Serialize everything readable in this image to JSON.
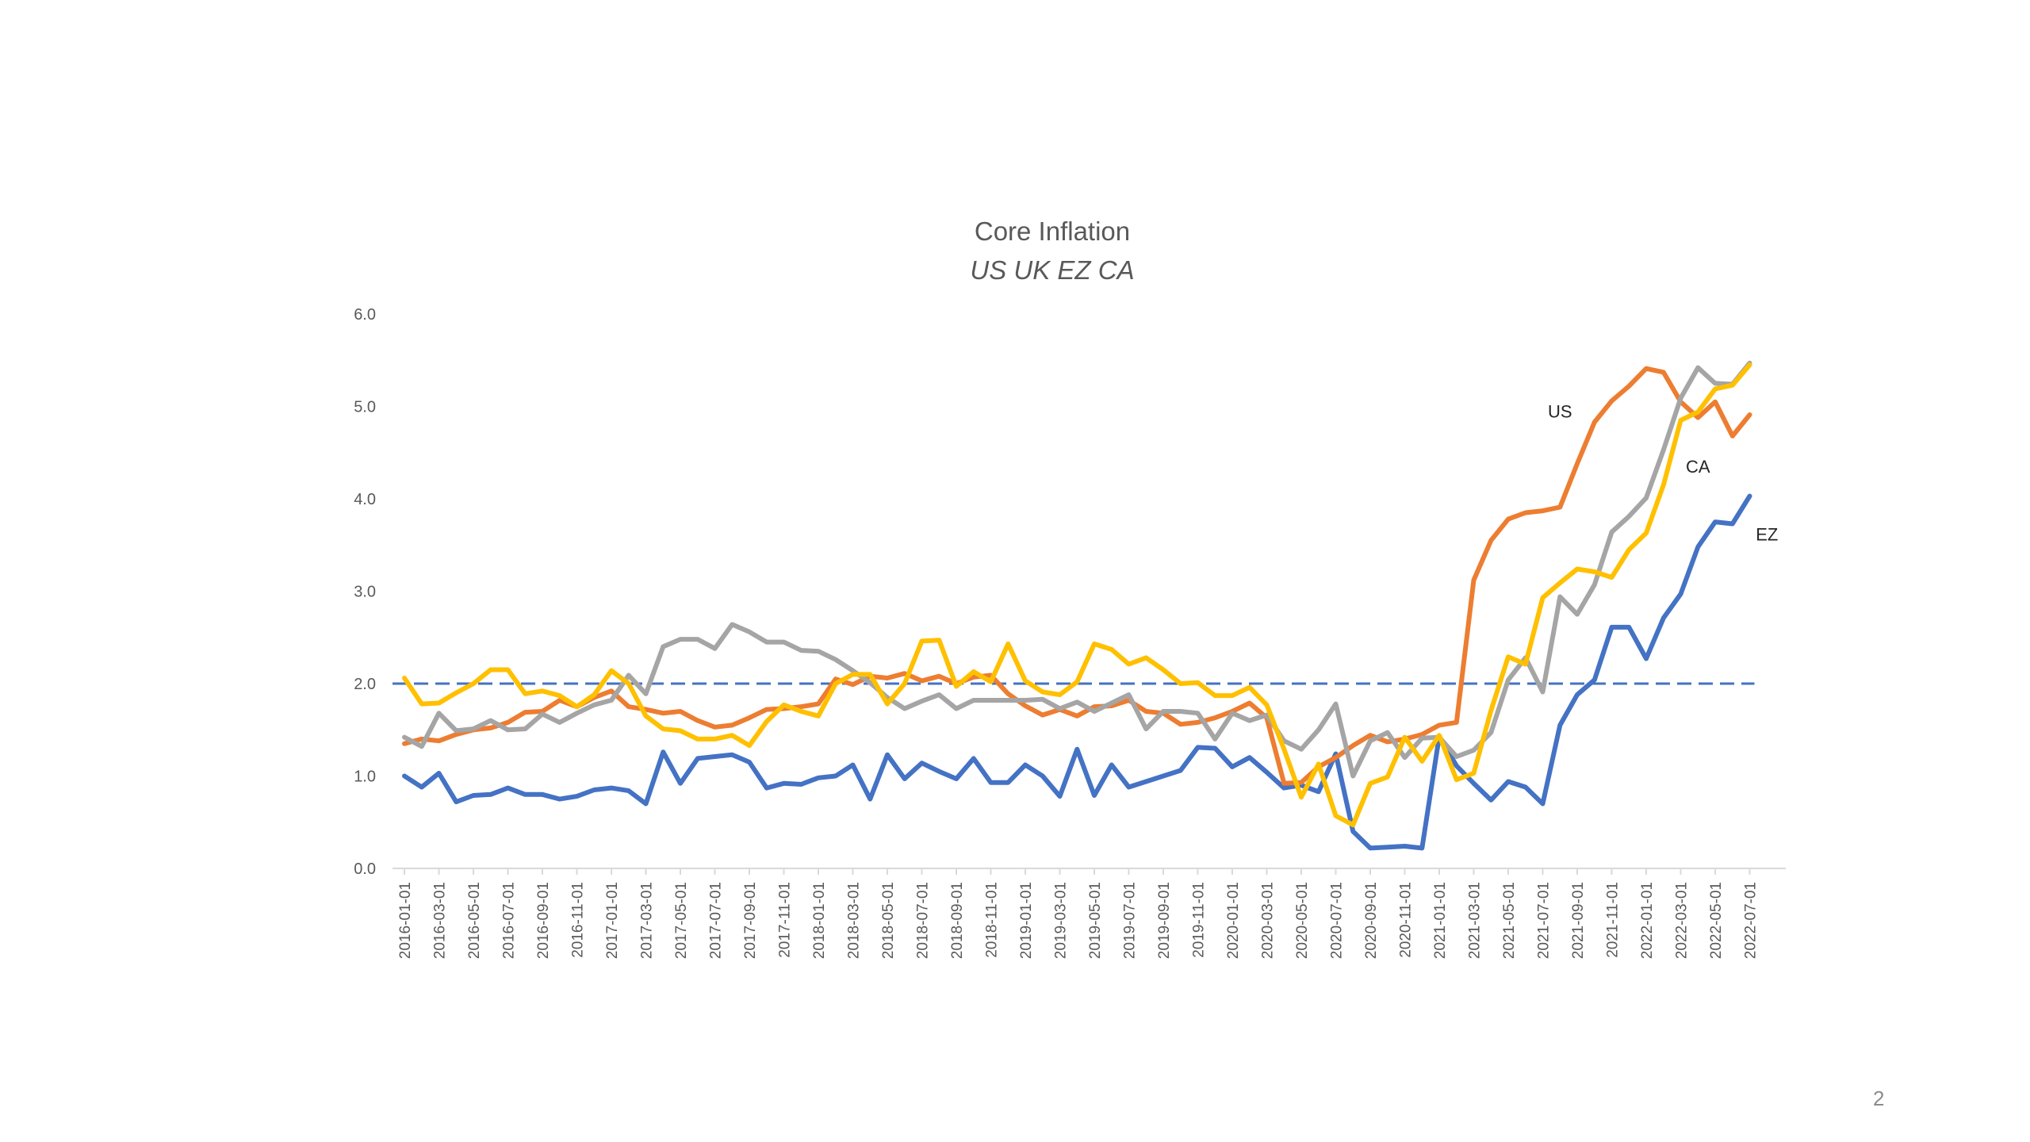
{
  "page_number": "2",
  "chart_data": {
    "type": "line",
    "title": "Core Inflation",
    "subtitle": "US UK EZ CA",
    "xlabel": "",
    "ylabel": "",
    "ylim": [
      0,
      6
    ],
    "y_ticks": [
      "0.0",
      "1.0",
      "2.0",
      "3.0",
      "4.0",
      "5.0",
      "6.0"
    ],
    "x_start": "2016-01",
    "x_tick_labels": [
      "2016-01-01",
      "2016-03-01",
      "2016-05-01",
      "2016-07-01",
      "2016-09-01",
      "2016-11-01",
      "2017-01-01",
      "2017-03-01",
      "2017-05-01",
      "2017-07-01",
      "2017-09-01",
      "2017-11-01",
      "2018-01-01",
      "2018-03-01",
      "2018-05-01",
      "2018-07-01",
      "2018-09-01",
      "2018-11-01",
      "2019-01-01",
      "2019-03-01",
      "2019-05-01",
      "2019-07-01",
      "2019-09-01",
      "2019-11-01",
      "2020-01-01",
      "2020-03-01",
      "2020-05-01",
      "2020-07-01",
      "2020-09-01",
      "2020-11-01",
      "2021-01-01",
      "2021-03-01",
      "2021-05-01",
      "2021-07-01",
      "2021-09-01",
      "2021-11-01",
      "2022-01-01",
      "2022-03-01",
      "2022-05-01",
      "2022-07-01"
    ],
    "grid": false,
    "reference_line": {
      "value": 2.0,
      "style": "dashed",
      "color": "#4472C4"
    },
    "annotations": [
      {
        "text": "US",
        "x": "2021-08-01",
        "y": 4.95
      },
      {
        "text": "CA",
        "x": "2022-04-01",
        "y": 4.35
      },
      {
        "text": "EZ",
        "x": "2022-08-01",
        "y": 3.62
      }
    ],
    "series": [
      {
        "key": "ez",
        "color": "#4472C4",
        "values": [
          1.0,
          0.88,
          1.03,
          0.72,
          0.79,
          0.8,
          0.87,
          0.8,
          0.8,
          0.75,
          0.78,
          0.85,
          0.87,
          0.84,
          0.7,
          1.26,
          0.92,
          1.19,
          1.21,
          1.23,
          1.15,
          0.87,
          0.92,
          0.91,
          0.98,
          1.0,
          1.12,
          0.75,
          1.23,
          0.97,
          1.14,
          1.05,
          0.97,
          1.19,
          0.93,
          0.93,
          1.12,
          1.0,
          0.78,
          1.29,
          0.79,
          1.12,
          0.88,
          0.94,
          1.0,
          1.06,
          1.31,
          1.3,
          1.1,
          1.2,
          1.04,
          0.87,
          0.9,
          0.83,
          1.24,
          0.4,
          0.22,
          0.23,
          0.24,
          0.22,
          1.43,
          1.11,
          0.92,
          0.74,
          0.94,
          0.88,
          0.7,
          1.55,
          1.88,
          2.04,
          2.61,
          2.61,
          2.27,
          2.71,
          2.97,
          3.48,
          3.75,
          3.73,
          4.03
        ]
      },
      {
        "key": "us",
        "color": "#ED7D31",
        "values": [
          1.35,
          1.4,
          1.38,
          1.45,
          1.5,
          1.52,
          1.58,
          1.69,
          1.7,
          1.82,
          1.75,
          1.85,
          1.92,
          1.75,
          1.72,
          1.68,
          1.7,
          1.6,
          1.53,
          1.55,
          1.63,
          1.72,
          1.73,
          1.75,
          1.78,
          2.05,
          1.99,
          2.08,
          2.06,
          2.11,
          2.03,
          2.08,
          2.0,
          2.07,
          2.09,
          1.89,
          1.76,
          1.66,
          1.72,
          1.65,
          1.75,
          1.76,
          1.82,
          1.7,
          1.68,
          1.56,
          1.58,
          1.63,
          1.7,
          1.79,
          1.63,
          0.92,
          0.93,
          1.1,
          1.2,
          1.33,
          1.44,
          1.37,
          1.4,
          1.45,
          1.55,
          1.58,
          3.12,
          3.55,
          3.78,
          3.85,
          3.87,
          3.91,
          4.38,
          4.83,
          5.06,
          5.22,
          5.41,
          5.37,
          5.05,
          4.88,
          5.05,
          4.68,
          4.91
        ]
      },
      {
        "key": "uk",
        "color": "#A5A5A5",
        "values": [
          1.42,
          1.32,
          1.68,
          1.49,
          1.51,
          1.6,
          1.5,
          1.51,
          1.67,
          1.58,
          1.68,
          1.77,
          1.82,
          2.09,
          1.89,
          2.4,
          2.48,
          2.48,
          2.38,
          2.64,
          2.56,
          2.45,
          2.45,
          2.36,
          2.35,
          2.26,
          2.14,
          2.01,
          1.85,
          1.73,
          1.81,
          1.88,
          1.73,
          1.82,
          1.82,
          1.82,
          1.82,
          1.83,
          1.73,
          1.8,
          1.7,
          1.79,
          1.88,
          1.51,
          1.7,
          1.7,
          1.68,
          1.4,
          1.68,
          1.6,
          1.66,
          1.38,
          1.29,
          1.5,
          1.78,
          1.0,
          1.38,
          1.47,
          1.2,
          1.41,
          1.42,
          1.21,
          1.28,
          1.47,
          2.04,
          2.28,
          1.91,
          2.94,
          2.75,
          3.07,
          3.64,
          3.81,
          4.01,
          4.53,
          5.09,
          5.42,
          5.25,
          5.24,
          5.47
        ]
      },
      {
        "key": "ca",
        "color": "#FFC000",
        "values": [
          2.06,
          1.78,
          1.79,
          1.9,
          2.0,
          2.15,
          2.15,
          1.89,
          1.92,
          1.87,
          1.75,
          1.88,
          2.14,
          2.0,
          1.65,
          1.51,
          1.49,
          1.4,
          1.4,
          1.44,
          1.33,
          1.59,
          1.77,
          1.7,
          1.65,
          2.0,
          2.1,
          2.1,
          1.78,
          2.0,
          2.46,
          2.47,
          1.97,
          2.13,
          2.02,
          2.43,
          2.03,
          1.91,
          1.88,
          2.02,
          2.43,
          2.37,
          2.21,
          2.28,
          2.15,
          2.0,
          2.01,
          1.87,
          1.87,
          1.96,
          1.77,
          1.29,
          0.77,
          1.13,
          0.57,
          0.47,
          0.92,
          0.99,
          1.42,
          1.16,
          1.44,
          0.96,
          1.03,
          1.71,
          2.29,
          2.21,
          2.93,
          3.09,
          3.24,
          3.21,
          3.15,
          3.45,
          3.63,
          4.15,
          4.85,
          4.94,
          5.19,
          5.23,
          5.45
        ]
      }
    ]
  }
}
